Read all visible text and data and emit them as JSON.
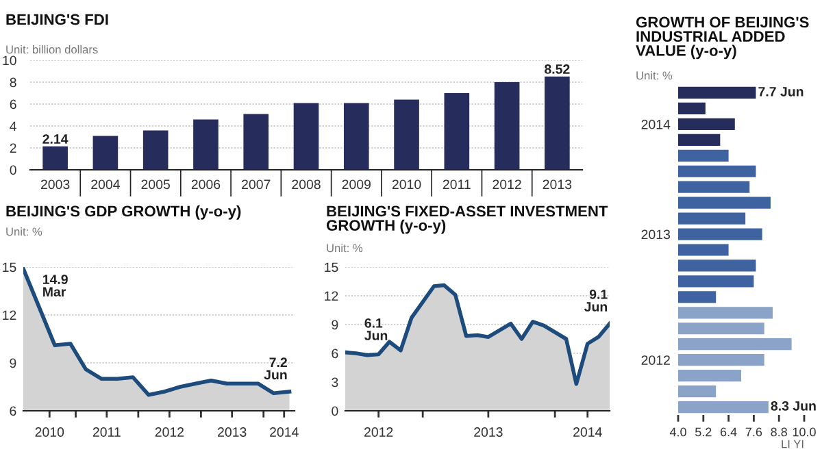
{
  "chart_data": [
    {
      "type": "bar",
      "title": "BEIJING'S FDI",
      "subtitle": "Unit: billion dollars",
      "categories": [
        "2003",
        "2004",
        "2005",
        "2006",
        "2007",
        "2008",
        "2009",
        "2010",
        "2011",
        "2012",
        "2013"
      ],
      "values": [
        2.14,
        3.1,
        3.6,
        4.6,
        5.1,
        6.1,
        6.1,
        6.4,
        7.0,
        8.0,
        8.52
      ],
      "value_labels": [
        "2.14",
        null,
        null,
        null,
        null,
        null,
        null,
        null,
        null,
        null,
        "8.52"
      ],
      "color": "#262d5c",
      "ylim": [
        0,
        10
      ],
      "yticks": [
        0,
        2,
        4,
        6,
        8,
        10
      ],
      "grid": "y"
    },
    {
      "type": "area",
      "title": "BEIJING'S GDP GROWTH (y-o-y)",
      "subtitle": "Unit: %",
      "x": [
        "2010-03",
        "2010-06",
        "2010-09",
        "2010-12",
        "2011-03",
        "2011-06",
        "2011-09",
        "2011-12",
        "2012-03",
        "2012-06",
        "2012-09",
        "2012-12",
        "2013-03",
        "2013-06",
        "2013-09",
        "2013-12",
        "2014-03",
        "2014-06"
      ],
      "values": [
        14.9,
        12.5,
        10.1,
        10.2,
        8.6,
        8.0,
        8.0,
        8.1,
        7.0,
        7.2,
        7.5,
        7.7,
        7.9,
        7.7,
        7.7,
        7.7,
        7.1,
        7.2
      ],
      "color": "#1c4b7c",
      "annotations": [
        {
          "text": "14.9\nMar",
          "x": "2010-03",
          "y": 14.9
        },
        {
          "text": "7.2\nJun",
          "x": "2014-06",
          "y": 7.2
        }
      ],
      "xlim": [
        "2010-03",
        "2014-07"
      ],
      "xticks": [
        {
          "value": "2010-08",
          "label": "2010"
        },
        {
          "value": "2011-01",
          "label": null
        },
        {
          "value": "2011-07",
          "label": "2011"
        },
        {
          "value": "2012-01",
          "label": null
        },
        {
          "value": "2012-07",
          "label": "2012"
        },
        {
          "value": "2013-01",
          "label": null
        },
        {
          "value": "2013-07",
          "label": "2013"
        },
        {
          "value": "2014-01",
          "label": null
        },
        {
          "value": "2014-05",
          "label": "2014"
        }
      ],
      "ylim": [
        6,
        15
      ],
      "yticks": [
        6,
        9,
        12,
        15
      ],
      "grid": "y"
    },
    {
      "type": "area",
      "title": "BEIJING'S FIXED-ASSET INVESTMENT\nGROWTH (y-o-y)",
      "subtitle": "Unit: %",
      "x": [
        "2012-06",
        "2012-07",
        "2012-08",
        "2012-09",
        "2012-10",
        "2012-11",
        "2012-12",
        "2013-02",
        "2013-03",
        "2013-04",
        "2013-05",
        "2013-06",
        "2013-07",
        "2013-08",
        "2013-09",
        "2013-10",
        "2013-11",
        "2013-12",
        "2014-02",
        "2014-03",
        "2014-04",
        "2014-05",
        "2014-06"
      ],
      "values": [
        6.1,
        6.0,
        5.8,
        5.9,
        7.2,
        6.3,
        9.7,
        13.0,
        13.1,
        12.1,
        7.8,
        7.9,
        7.7,
        8.4,
        9.1,
        7.5,
        9.3,
        8.9,
        7.5,
        2.8,
        7.0,
        7.7,
        9.1
      ],
      "color": "#1c4b7c",
      "annotations": [
        {
          "text": "6.1\nJun",
          "x": "2012-06",
          "y": 6.1
        },
        {
          "text": "9.1\nJun",
          "x": "2014-06",
          "y": 9.1
        }
      ],
      "xlim": [
        "2012-06",
        "2014-06"
      ],
      "xticks": [
        {
          "value": "2012-09",
          "label": "2012"
        },
        {
          "value": "2013-01",
          "label": null
        },
        {
          "value": "2013-07",
          "label": "2013"
        },
        {
          "value": "2014-01",
          "label": null
        },
        {
          "value": "2014-04",
          "label": "2014"
        }
      ],
      "ylim": [
        0,
        15
      ],
      "yticks": [
        0,
        3,
        6,
        9,
        12,
        15
      ],
      "grid": "y"
    },
    {
      "type": "bar",
      "orientation": "horizontal",
      "title": "GROWTH OF BEIJING'S\nINDUSTRIAL ADDED\nVALUE (y-o-y)",
      "subtitle": "Unit: %",
      "categories": [
        null,
        null,
        "2014",
        null,
        null,
        null,
        null,
        null,
        null,
        "2013",
        null,
        null,
        null,
        null,
        null,
        null,
        null,
        "2012",
        null,
        null,
        null
      ],
      "values": [
        7.7,
        5.3,
        6.7,
        6.0,
        6.4,
        7.7,
        7.4,
        8.4,
        7.2,
        8.0,
        6.4,
        7.7,
        7.6,
        5.8,
        8.5,
        8.1,
        9.4,
        8.1,
        7.0,
        5.8,
        8.3
      ],
      "colors": [
        "#262d5c",
        "#262d5c",
        "#262d5c",
        "#262d5c",
        "#3f63a0",
        "#3f63a0",
        "#3f63a0",
        "#3f63a0",
        "#3f63a0",
        "#3f63a0",
        "#3f63a0",
        "#3f63a0",
        "#3f63a0",
        "#3f63a0",
        "#8ba3c8",
        "#8ba3c8",
        "#8ba3c8",
        "#8ba3c8",
        "#8ba3c8",
        "#8ba3c8",
        "#8ba3c8"
      ],
      "value_labels": [
        "7.7 Jun",
        null,
        null,
        null,
        null,
        null,
        null,
        null,
        null,
        null,
        null,
        null,
        null,
        null,
        null,
        null,
        null,
        null,
        null,
        null,
        "8.3 Jun"
      ],
      "xlim": [
        4,
        10
      ],
      "xticks": [
        {
          "value": 4,
          "label": "4.0"
        },
        {
          "value": 5.2,
          "label": "5.2"
        },
        {
          "value": 6.4,
          "label": "6.4"
        },
        {
          "value": 7.6,
          "label": "7.6"
        },
        {
          "value": 8.8,
          "label": "8.8"
        },
        {
          "value": 10,
          "label": "10.0"
        }
      ],
      "annotations": [
        "LI YI"
      ]
    }
  ]
}
